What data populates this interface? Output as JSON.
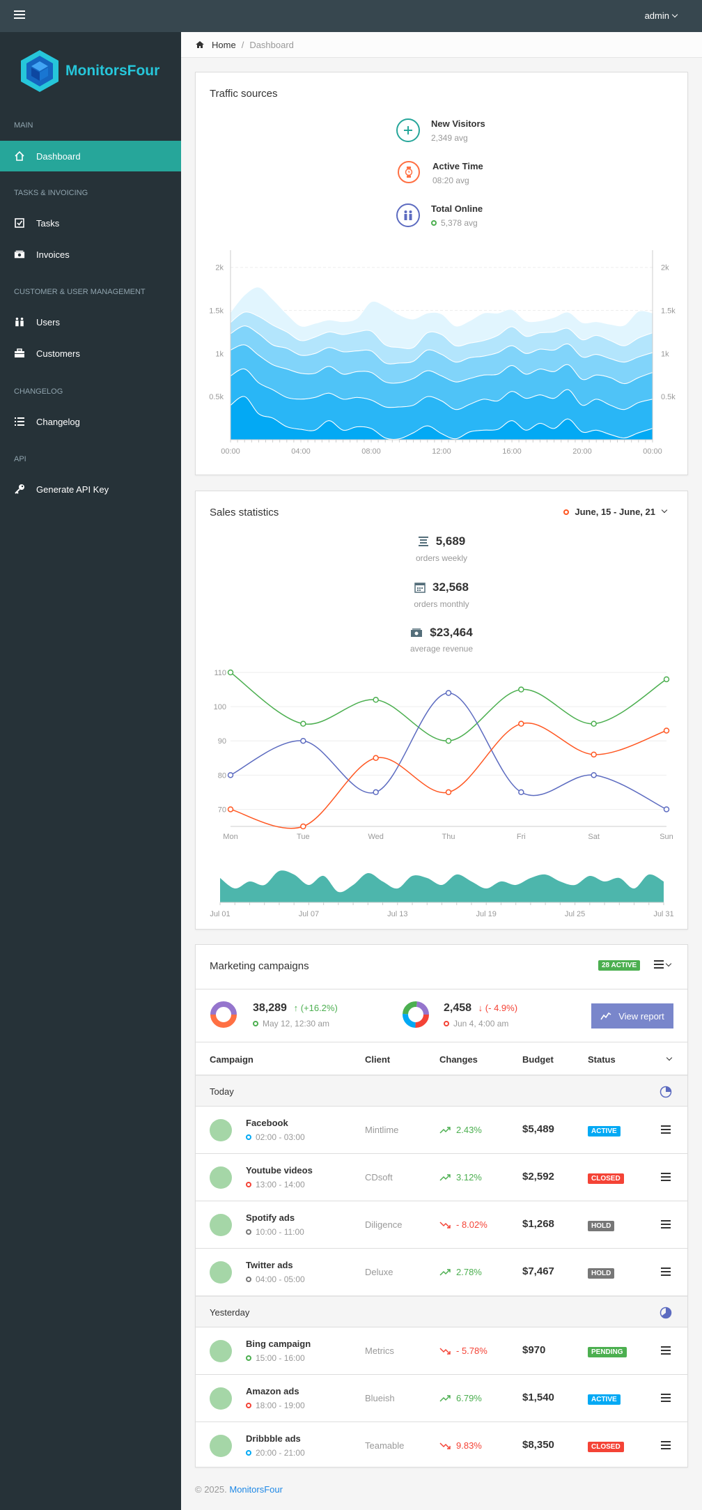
{
  "navbar": {
    "user_label": "admin"
  },
  "sidebar": {
    "brand": "MonitorsFour",
    "sections": [
      {
        "header": "Main",
        "items": [
          {
            "label": "Dashboard",
            "icon": "home-icon",
            "active": true
          }
        ]
      },
      {
        "header": "Tasks & Invoicing",
        "items": [
          {
            "label": "Tasks",
            "icon": "checkbox-icon"
          },
          {
            "label": "Invoices",
            "icon": "cash-icon"
          }
        ]
      },
      {
        "header": "Customer & User Management",
        "items": [
          {
            "label": "Users",
            "icon": "users-icon"
          },
          {
            "label": "Customers",
            "icon": "briefcase-icon"
          }
        ]
      },
      {
        "header": "Changelog",
        "items": [
          {
            "label": "Changelog",
            "icon": "list-icon"
          }
        ]
      },
      {
        "header": "API",
        "items": [
          {
            "label": "Generate API Key",
            "icon": "key-icon"
          }
        ]
      }
    ]
  },
  "breadcrumb": {
    "home": "Home",
    "current": "Dashboard"
  },
  "traffic": {
    "title": "Traffic sources",
    "stats": [
      {
        "label": "New Visitors",
        "sub": "2,349 avg",
        "color": "#26a69a",
        "icon": "plus-icon"
      },
      {
        "label": "Active Time",
        "sub": "08:20 avg",
        "color": "#ff7043",
        "icon": "watch-icon"
      },
      {
        "label": "Total Online",
        "sub": "5,378 avg",
        "color": "#5c6bc0",
        "icon": "people-icon",
        "dot_color": "#4caf50"
      }
    ],
    "chart_data": {
      "type": "area",
      "stacked": true,
      "x_ticks": [
        "00:00",
        "04:00",
        "08:00",
        "12:00",
        "16:00",
        "20:00",
        "00:00"
      ],
      "y_ticks": [
        "0.5k",
        "1k",
        "1.5k",
        "2k"
      ],
      "ylim": [
        0,
        2200
      ],
      "colors": [
        "#03a9f4",
        "#29b6f6",
        "#4fc3f7",
        "#81d4fa",
        "#b3e5fc",
        "#e1f5fe"
      ],
      "layers": [
        [
          400,
          500,
          300,
          250,
          150,
          120,
          110,
          220,
          110,
          150,
          130,
          20,
          10,
          80,
          160,
          70,
          10,
          90,
          110,
          120,
          220,
          110,
          190,
          130,
          240,
          90,
          110,
          60,
          20,
          80,
          130
        ],
        [
          340,
          320,
          360,
          330,
          340,
          350,
          380,
          320,
          360,
          340,
          330,
          360,
          370,
          320,
          340,
          380,
          340,
          320,
          360,
          330,
          340,
          370,
          330,
          350,
          340,
          310,
          360,
          340,
          330,
          350,
          340
        ],
        [
          300,
          280,
          320,
          290,
          330,
          300,
          280,
          310,
          290,
          300,
          320,
          290,
          280,
          310,
          300,
          290,
          320,
          300,
          280,
          310,
          300,
          280,
          300,
          310,
          290,
          300,
          280,
          320,
          300,
          290,
          310
        ],
        [
          190,
          220,
          250,
          230,
          240,
          210,
          230,
          220,
          260,
          240,
          250,
          220,
          230,
          200,
          240,
          250,
          230,
          240,
          220,
          250,
          230,
          240,
          230,
          250,
          240,
          260,
          240,
          220,
          250,
          240,
          230
        ],
        [
          130,
          160,
          200,
          230,
          190,
          170,
          190,
          180,
          200,
          220,
          230,
          210,
          180,
          160,
          200,
          230,
          190,
          170,
          180,
          200,
          220,
          200,
          190,
          210,
          180,
          200,
          220,
          210,
          190,
          220,
          230
        ],
        [
          120,
          200,
          340,
          300,
          210,
          170,
          160,
          140,
          150,
          160,
          340,
          450,
          380,
          330,
          230,
          240,
          230,
          260,
          320,
          260,
          200,
          180,
          140,
          170,
          190,
          200,
          160,
          190,
          240,
          310,
          230
        ]
      ]
    }
  },
  "sales": {
    "title": "Sales statistics",
    "date_range": "June, 15 - June, 21",
    "stats": [
      {
        "value": "5,689",
        "label": "orders weekly",
        "icon": "stack-icon"
      },
      {
        "value": "32,568",
        "label": "orders monthly",
        "icon": "calendar-icon"
      },
      {
        "value": "$23,464",
        "label": "average revenue",
        "icon": "cash-icon"
      }
    ],
    "chart_data": {
      "type": "line",
      "categories": [
        "Mon",
        "Tue",
        "Wed",
        "Thu",
        "Fri",
        "Sat",
        "Sun"
      ],
      "y_ticks": [
        70,
        80,
        90,
        100,
        110
      ],
      "ylim": [
        65,
        110
      ],
      "series": [
        {
          "values": [
            110,
            95,
            102,
            90,
            105,
            95,
            108
          ],
          "color": "#4caf50"
        },
        {
          "values": [
            80,
            90,
            75,
            104,
            75,
            80,
            70
          ],
          "color": "#5c6bc0"
        },
        {
          "values": [
            70,
            65,
            85,
            75,
            95,
            86,
            93
          ],
          "color": "#ff5722"
        }
      ]
    },
    "mini_chart": {
      "type": "area",
      "x_ticks": [
        "Jul 01",
        "Jul 07",
        "Jul 13",
        "Jul 19",
        "Jul 25",
        "Jul 31"
      ],
      "color": "#4db6ac",
      "values": [
        35,
        20,
        30,
        25,
        45,
        40,
        25,
        38,
        15,
        25,
        42,
        30,
        20,
        38,
        35,
        25,
        40,
        30,
        20,
        30,
        25,
        35,
        40,
        30,
        25,
        38,
        30,
        35,
        20,
        40,
        30
      ]
    }
  },
  "campaigns": {
    "title": "Marketing campaigns",
    "active_badge": "28 active",
    "summary": [
      {
        "value": "38,289",
        "change": "(+16.2%)",
        "direction": "up",
        "time": "May 12, 12:30 am",
        "dot_color": "#4caf50"
      },
      {
        "value": "2,458",
        "change": "(- 4.9%)",
        "direction": "down",
        "time": "Jun 4, 4:00 am",
        "dot_color": "#f44336"
      }
    ],
    "view_report": "View report",
    "columns": [
      "Campaign",
      "Client",
      "Changes",
      "Budget",
      "Status"
    ],
    "groups": [
      {
        "label": "Today",
        "rows": [
          {
            "name": "Facebook",
            "time": "02:00 - 03:00",
            "dot": "#03a9f4",
            "client": "Mintlime",
            "change": "2.43%",
            "up": true,
            "budget": "$5,489",
            "status": "Active",
            "status_color": "#03a9f4"
          },
          {
            "name": "Youtube videos",
            "time": "13:00 - 14:00",
            "dot": "#f44336",
            "client": "CDsoft",
            "change": "3.12%",
            "up": true,
            "budget": "$2,592",
            "status": "Closed",
            "status_color": "#f44336"
          },
          {
            "name": "Spotify ads",
            "time": "10:00 - 11:00",
            "dot": "#777777",
            "client": "Diligence",
            "change": "- 8.02%",
            "up": false,
            "budget": "$1,268",
            "status": "Hold",
            "status_color": "#777777"
          },
          {
            "name": "Twitter ads",
            "time": "04:00 - 05:00",
            "dot": "#777777",
            "client": "Deluxe",
            "change": "2.78%",
            "up": true,
            "budget": "$7,467",
            "status": "Hold",
            "status_color": "#777777"
          }
        ]
      },
      {
        "label": "Yesterday",
        "rows": [
          {
            "name": "Bing campaign",
            "time": "15:00 - 16:00",
            "dot": "#4caf50",
            "client": "Metrics",
            "change": "- 5.78%",
            "up": false,
            "budget": "$970",
            "status": "Pending",
            "status_color": "#4caf50"
          },
          {
            "name": "Amazon ads",
            "time": "18:00 - 19:00",
            "dot": "#f44336",
            "client": "Blueish",
            "change": "6.79%",
            "up": true,
            "budget": "$1,540",
            "status": "Active",
            "status_color": "#03a9f4"
          },
          {
            "name": "Dribbble ads",
            "time": "20:00 - 21:00",
            "dot": "#03a9f4",
            "client": "Teamable",
            "change": "9.83%",
            "up": false,
            "budget": "$8,350",
            "status": "Closed",
            "status_color": "#f44336"
          }
        ]
      }
    ]
  },
  "footer": {
    "prefix": "© 2025.",
    "link": "MonitorsFour"
  },
  "colors": {
    "accent": "#26a69a",
    "navbar": "#37474f",
    "sidebar": "#263238",
    "up": "#4caf50",
    "down": "#f44336"
  }
}
